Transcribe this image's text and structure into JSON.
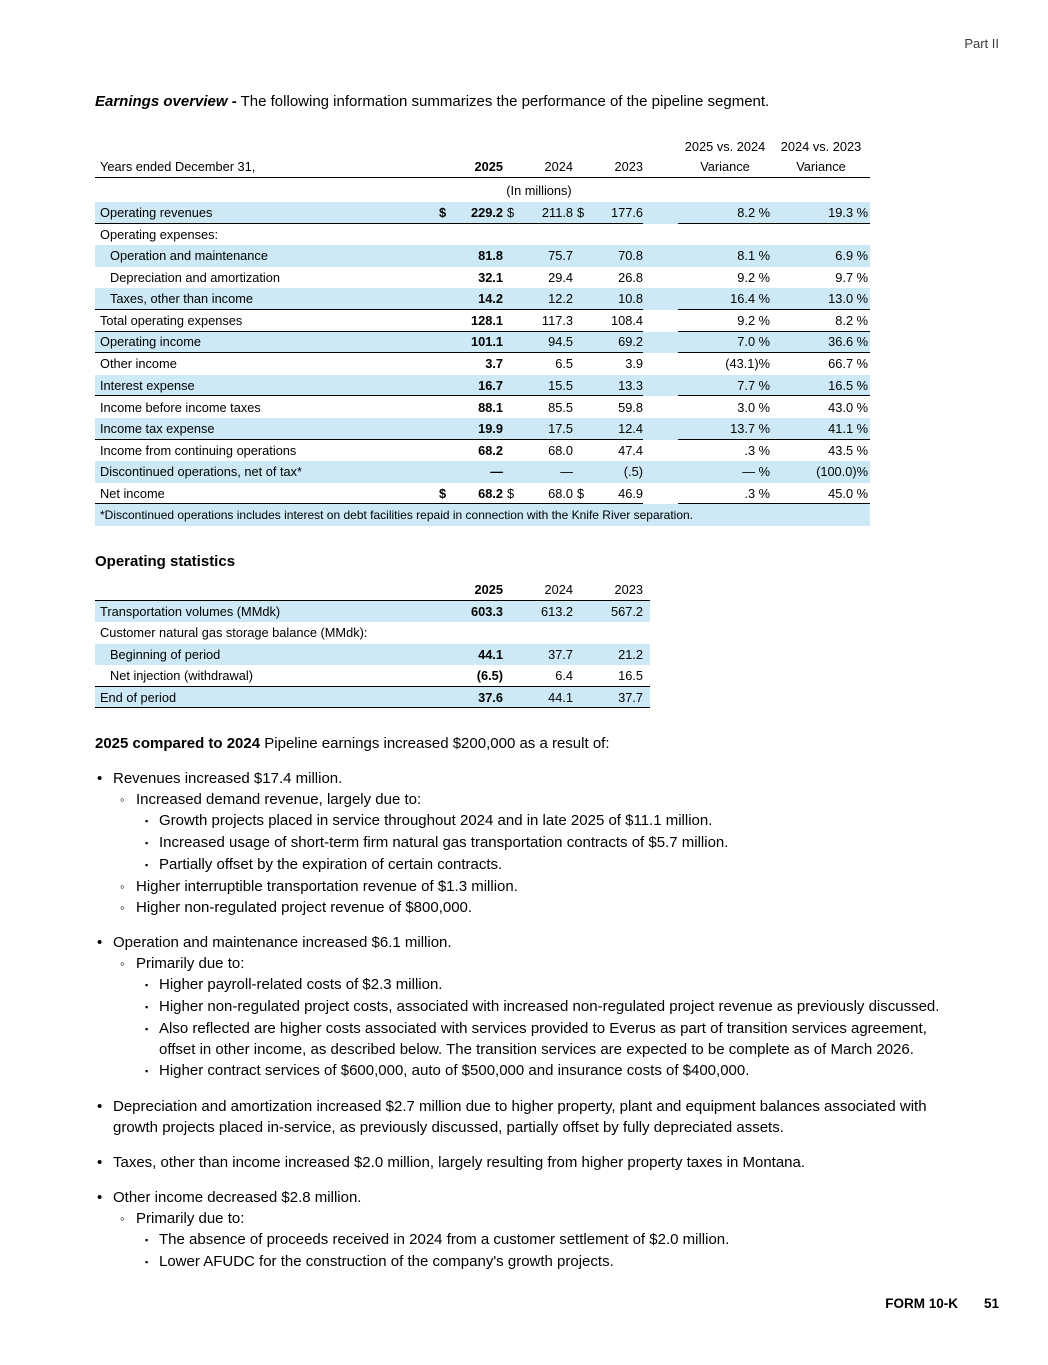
{
  "page": {
    "part_label": "Part II",
    "footer": {
      "form_label": "FORM 10-K",
      "page_number": "51"
    }
  },
  "colors": {
    "row_highlight": "#cde9f5",
    "rule": "#000000"
  },
  "heading": {
    "lead": "Earnings overview -",
    "text": "The following information summarizes the performance of the pipeline segment."
  },
  "earnings_table": {
    "headers": {
      "group1": "2025 vs. 2024",
      "group2": "2024 vs. 2023",
      "row_label": "Years ended December 31,",
      "y2025": "2025",
      "y2024": "2024",
      "y2023": "2023",
      "variance1": "Variance",
      "variance2": "Variance"
    },
    "units_note": "(In millions)",
    "rows": [
      {
        "label": "Operating revenues",
        "d1": "$",
        "v1": "229.2",
        "d2": "$",
        "v2": "211.8",
        "d3": "$",
        "v3": "177.6",
        "var1": "8.2 %",
        "var2": "19.3 %",
        "shaded": true,
        "rule": true
      },
      {
        "label": "Operating expenses:",
        "shaded": false
      },
      {
        "label": "Operation and maintenance",
        "indent": true,
        "v1": "81.8",
        "v2": "75.7",
        "v3": "70.8",
        "var1": "8.1 %",
        "var2": "6.9 %",
        "shaded": true
      },
      {
        "label": "Depreciation and amortization",
        "indent": true,
        "v1": "32.1",
        "v2": "29.4",
        "v3": "26.8",
        "var1": "9.2 %",
        "var2": "9.7 %",
        "shaded": false
      },
      {
        "label": "Taxes, other than income",
        "indent": true,
        "v1": "14.2",
        "v2": "12.2",
        "v3": "10.8",
        "var1": "16.4 %",
        "var2": "13.0 %",
        "shaded": true,
        "rule": true
      },
      {
        "label": "Total operating expenses",
        "v1": "128.1",
        "v2": "117.3",
        "v3": "108.4",
        "var1": "9.2 %",
        "var2": "8.2 %",
        "shaded": false,
        "rule": true
      },
      {
        "label": "Operating income",
        "v1": "101.1",
        "v2": "94.5",
        "v3": "69.2",
        "var1": "7.0 %",
        "var2": "36.6 %",
        "shaded": true,
        "rule": true
      },
      {
        "label": "Other income",
        "v1": "3.7",
        "v2": "6.5",
        "v3": "3.9",
        "var1": "(43.1)%",
        "var2": "66.7 %",
        "shaded": false
      },
      {
        "label": "Interest expense",
        "v1": "16.7",
        "v2": "15.5",
        "v3": "13.3",
        "var1": "7.7 %",
        "var2": "16.5 %",
        "shaded": true,
        "rule": true
      },
      {
        "label": "Income before income taxes",
        "v1": "88.1",
        "v2": "85.5",
        "v3": "59.8",
        "var1": "3.0 %",
        "var2": "43.0 %",
        "shaded": false
      },
      {
        "label": "Income tax expense",
        "v1": "19.9",
        "v2": "17.5",
        "v3": "12.4",
        "var1": "13.7 %",
        "var2": "41.1 %",
        "shaded": true,
        "rule": true
      },
      {
        "label": "Income from continuing operations",
        "v1": "68.2",
        "v2": "68.0",
        "v3": "47.4",
        "var1": ".3 %",
        "var2": "43.5 %",
        "shaded": false
      },
      {
        "label": "Discontinued operations, net of tax*",
        "v1": "—",
        "v2": "—",
        "v3": "(.5)",
        "var1": "— %",
        "var2": "(100.0)%",
        "shaded": true
      },
      {
        "label": "Net income",
        "d1": "$",
        "v1": "68.2",
        "d2": "$",
        "v2": "68.0",
        "d3": "$",
        "v3": "46.9",
        "var1": ".3 %",
        "var2": "45.0 %",
        "shaded": false,
        "rule": true
      },
      {
        "footnote": "*Discontinued operations includes interest on debt facilities repaid in connection with the Knife River separation.",
        "shaded": true
      }
    ]
  },
  "stats_table": {
    "title": "Operating statistics",
    "headers": {
      "y2025": "2025",
      "y2024": "2024",
      "y2023": "2023"
    },
    "rows": [
      {
        "label": "Transportation volumes (MMdk)",
        "v1": "603.3",
        "v2": "613.2",
        "v3": "567.2",
        "shaded": true
      },
      {
        "label": "Customer natural gas storage balance (MMdk):",
        "shaded": false
      },
      {
        "label": "Beginning of period",
        "indent": true,
        "v1": "44.1",
        "v2": "37.7",
        "v3": "21.2",
        "shaded": true
      },
      {
        "label": "Net injection (withdrawal)",
        "indent": true,
        "v1": "(6.5)",
        "v2": "6.4",
        "v3": "16.5",
        "shaded": false,
        "rule": true
      },
      {
        "label": "End of period",
        "v1": "37.6",
        "v2": "44.1",
        "v3": "37.7",
        "shaded": true,
        "rule": true
      }
    ]
  },
  "commentary": {
    "intro_bold": "2025 compared to 2024",
    "intro_text": "Pipeline earnings increased $200,000 as a result of:",
    "markers": {
      "1": "•",
      "2": "◦",
      "3": "▪"
    },
    "groups": [
      {
        "items": [
          {
            "level": 1,
            "text": "Revenues increased $17.4 million."
          },
          {
            "level": 2,
            "text": "Increased demand revenue, largely due to:"
          },
          {
            "level": 3,
            "text": "Growth projects placed in service throughout 2024 and in late 2025 of $11.1 million."
          },
          {
            "level": 3,
            "text": "Increased usage of short-term firm natural gas transportation contracts of $5.7 million."
          },
          {
            "level": 3,
            "text": "Partially offset by the expiration of certain contracts."
          },
          {
            "level": 2,
            "text": "Higher interruptible transportation revenue of $1.3 million."
          },
          {
            "level": 2,
            "text": "Higher non-regulated project revenue of $800,000."
          }
        ]
      },
      {
        "items": [
          {
            "level": 1,
            "text": "Operation and maintenance increased $6.1 million."
          },
          {
            "level": 2,
            "text": "Primarily due to:"
          },
          {
            "level": 3,
            "text": "Higher payroll-related costs of $2.3 million."
          },
          {
            "level": 3,
            "text": "Higher non-regulated project costs, associated with increased non-regulated project revenue as previously discussed."
          },
          {
            "level": 3,
            "text": "Also reflected are higher costs associated with services provided to Everus as part of transition services agreement, offset in other income, as described below. The transition services are expected to be complete as of March 2026."
          },
          {
            "level": 3,
            "text": "Higher contract services of $600,000, auto of $500,000 and insurance costs of $400,000."
          }
        ]
      },
      {
        "items": [
          {
            "level": 1,
            "text": "Depreciation and amortization increased $2.7 million due to higher property, plant and equipment balances associated with growth projects placed in-service, as previously discussed, partially offset by fully depreciated assets."
          }
        ]
      },
      {
        "items": [
          {
            "level": 1,
            "text": "Taxes, other than income increased $2.0 million, largely resulting from higher property taxes in Montana."
          }
        ]
      },
      {
        "items": [
          {
            "level": 1,
            "text": "Other income decreased $2.8 million."
          },
          {
            "level": 2,
            "text": "Primarily due to:"
          },
          {
            "level": 3,
            "text": "The absence of proceeds received in 2024 from a customer settlement of $2.0 million."
          },
          {
            "level": 3,
            "text": "Lower AFUDC for the construction of the company's growth projects."
          }
        ]
      }
    ]
  }
}
